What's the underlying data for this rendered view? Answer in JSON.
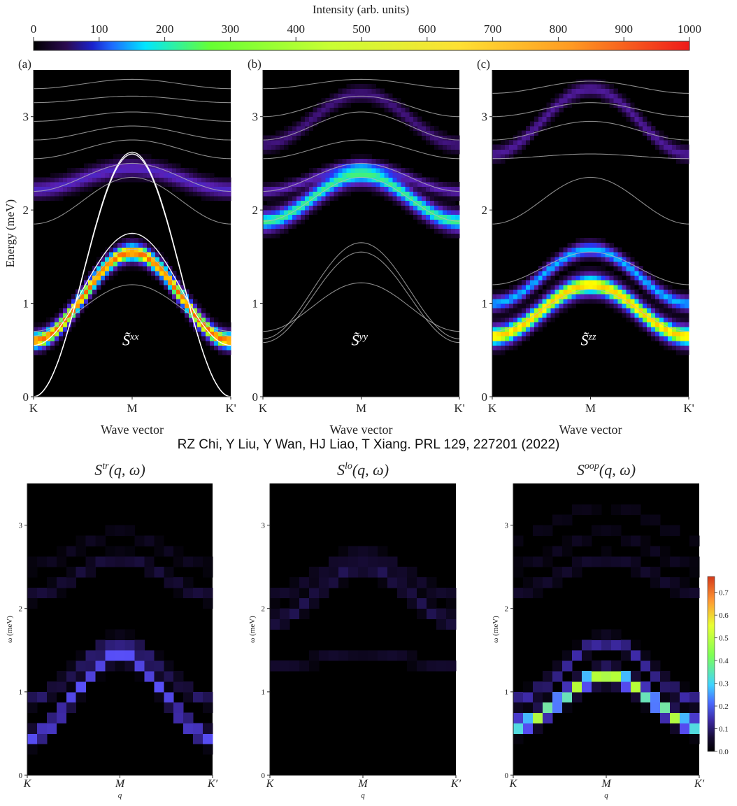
{
  "colors": {
    "jet": [
      "#000000",
      "#2b0a50",
      "#5a1fb3",
      "#1d3cff",
      "#00d8ff",
      "#66ff33",
      "#ffff00",
      "#ff6600",
      "#ff0000"
    ],
    "purple_map": [
      "#000000",
      "#160b33",
      "#3d2aa6",
      "#5a52ff",
      "#3fd3ff",
      "#b9ff33",
      "#ff4b1f"
    ],
    "guide_white": "#ffffff",
    "guide_grey": "#b9b9b9"
  },
  "chart_data": [
    {
      "type": "heatmap",
      "title": "",
      "colorbar": {
        "label": "Intensity (arb. units)",
        "ticks": [
          "0",
          "100",
          "200",
          "300",
          "400",
          "500",
          "600",
          "700",
          "800",
          "900",
          "1000"
        ],
        "range": [
          0,
          1000
        ]
      }
    },
    {
      "type": "heatmap",
      "panel_label": "(a)",
      "annotation": "S̃xx",
      "xlabel": "Wave vector",
      "ylabel": "Energy (meV)",
      "xticks": [
        "K",
        "M",
        "K'"
      ],
      "yticks": [
        "0",
        "1",
        "2",
        "3"
      ],
      "ylim": [
        0,
        3.5
      ],
      "bands": [
        {
          "edge": 0.6,
          "center": 1.55,
          "width": 0.06,
          "intensity": 850
        },
        {
          "edge": 2.22,
          "center": 2.45,
          "width": 0.06,
          "intensity": 200
        }
      ],
      "guides": [
        {
          "style": "white",
          "edge": 0.0,
          "center": 2.6
        },
        {
          "style": "white",
          "edge": 0.0,
          "center": 2.62
        },
        {
          "style": "white",
          "edge": 0.55,
          "center": 1.75
        },
        {
          "style": "grey",
          "edge": 0.65,
          "center": 1.58
        },
        {
          "style": "grey",
          "edge": 0.7,
          "center": 1.2
        },
        {
          "style": "grey",
          "edge": 1.85,
          "center": 2.35
        },
        {
          "style": "grey",
          "edge": 2.2,
          "center": 2.5
        },
        {
          "style": "grey",
          "edge": 2.55,
          "center": 2.75
        },
        {
          "style": "grey",
          "edge": 2.75,
          "center": 2.9
        },
        {
          "style": "grey",
          "edge": 2.95,
          "center": 3.05
        },
        {
          "style": "grey",
          "edge": 3.15,
          "center": 3.22
        },
        {
          "style": "grey",
          "edge": 3.3,
          "center": 3.4
        }
      ]
    },
    {
      "type": "heatmap",
      "panel_label": "(b)",
      "annotation": "S̃yy",
      "xlabel": "Wave vector",
      "xticks": [
        "K",
        "M",
        "K'"
      ],
      "yticks": [
        "0",
        "1",
        "2",
        "3"
      ],
      "ylim": [
        0,
        3.5
      ],
      "bands": [
        {
          "edge": 1.88,
          "center": 2.38,
          "width": 0.07,
          "intensity": 500
        },
        {
          "edge": 2.2,
          "center": 2.48,
          "width": 0.04,
          "intensity": 180
        },
        {
          "edge": 2.7,
          "center": 3.25,
          "width": 0.05,
          "intensity": 120
        }
      ],
      "guides": [
        {
          "style": "grey",
          "edge": 0.58,
          "center": 1.55
        },
        {
          "style": "grey",
          "edge": 0.62,
          "center": 1.65
        },
        {
          "style": "grey",
          "edge": 0.7,
          "center": 1.22
        },
        {
          "style": "grey",
          "edge": 1.88,
          "center": 2.35
        },
        {
          "style": "grey",
          "edge": 2.2,
          "center": 2.5
        },
        {
          "style": "grey",
          "edge": 2.55,
          "center": 2.75
        },
        {
          "style": "grey",
          "edge": 2.75,
          "center": 3.05
        },
        {
          "style": "grey",
          "edge": 3.0,
          "center": 3.22
        },
        {
          "style": "grey",
          "edge": 3.3,
          "center": 3.4
        }
      ]
    },
    {
      "type": "heatmap",
      "panel_label": "(c)",
      "annotation": "S̃zz",
      "xlabel": "Wave vector",
      "xticks": [
        "K",
        "M",
        "K'"
      ],
      "yticks": [
        "0",
        "1",
        "2",
        "3"
      ],
      "ylim": [
        0,
        3.5
      ],
      "bands": [
        {
          "edge": 0.65,
          "center": 1.2,
          "width": 0.07,
          "intensity": 750
        },
        {
          "edge": 1.0,
          "center": 1.58,
          "width": 0.05,
          "intensity": 400
        },
        {
          "edge": 2.6,
          "center": 3.3,
          "width": 0.05,
          "intensity": 150
        }
      ],
      "guides": [
        {
          "style": "grey",
          "edge": 0.7,
          "center": 1.15
        },
        {
          "style": "grey",
          "edge": 1.2,
          "center": 1.55
        },
        {
          "style": "grey",
          "edge": 1.85,
          "center": 2.35
        },
        {
          "style": "grey",
          "edge": 2.55,
          "center": 2.6
        },
        {
          "style": "grey",
          "edge": 2.75,
          "center": 2.95
        },
        {
          "style": "grey",
          "edge": 3.0,
          "center": 3.15
        },
        {
          "style": "grey",
          "edge": 3.25,
          "center": 3.38
        }
      ]
    },
    {
      "type": "heatmap",
      "title": "S^tr(q, ω)",
      "xlabel": "q",
      "ylabel": "ω (meV)",
      "xticks": [
        "K",
        "M",
        "K′"
      ],
      "yticks": [
        "0",
        "1",
        "2",
        "3"
      ],
      "ylim": [
        0,
        3.5
      ],
      "bands": [
        {
          "edge": 0.45,
          "center": 1.45,
          "width": 0.06,
          "intensity": 0.3
        },
        {
          "edge": 0.9,
          "center": 1.6,
          "width": 0.05,
          "intensity": 0.12
        },
        {
          "edge": 2.15,
          "center": 2.6,
          "width": 0.05,
          "intensity": 0.08
        },
        {
          "edge": 2.5,
          "center": 2.9,
          "width": 0.04,
          "intensity": 0.04
        }
      ]
    },
    {
      "type": "heatmap",
      "title": "S^lo(q, ω)",
      "xlabel": "q",
      "ylabel": "ω (meV)",
      "xticks": [
        "K",
        "M",
        "K′"
      ],
      "yticks": [
        "0",
        "1",
        "2",
        "3"
      ],
      "ylim": [
        0,
        3.5
      ],
      "bands": [
        {
          "edge": 1.85,
          "center": 2.5,
          "width": 0.06,
          "intensity": 0.1
        },
        {
          "edge": 2.15,
          "center": 2.65,
          "width": 0.05,
          "intensity": 0.06
        },
        {
          "edge": 1.3,
          "center": 1.48,
          "width": 0.04,
          "intensity": 0.06
        }
      ]
    },
    {
      "type": "heatmap",
      "title": "S^oop(q, ω)",
      "xlabel": "q",
      "ylabel": "ω (meV)",
      "xticks": [
        "K",
        "M",
        "K′"
      ],
      "yticks": [
        "0",
        "1",
        "2",
        "3"
      ],
      "ylim": [
        0,
        3.5
      ],
      "bands": [
        {
          "edge": 0.6,
          "center": 1.2,
          "width": 0.06,
          "intensity": 0.6
        },
        {
          "edge": 0.9,
          "center": 1.6,
          "width": 0.05,
          "intensity": 0.18
        },
        {
          "edge": 2.2,
          "center": 2.6,
          "width": 0.05,
          "intensity": 0.06
        },
        {
          "edge": 2.5,
          "center": 2.9,
          "width": 0.04,
          "intensity": 0.04
        },
        {
          "edge": 2.85,
          "center": 3.25,
          "width": 0.04,
          "intensity": 0.03
        }
      ],
      "colorbar": {
        "ticks": [
          "0.0",
          "0.1",
          "0.2",
          "0.3",
          "0.4",
          "0.5",
          "0.6",
          "0.7"
        ],
        "range": [
          0,
          0.77
        ]
      }
    }
  ],
  "citation": "RZ Chi, Y Liu, Y Wan, HJ Liao, T Xiang. PRL 129, 227201 (2022)"
}
